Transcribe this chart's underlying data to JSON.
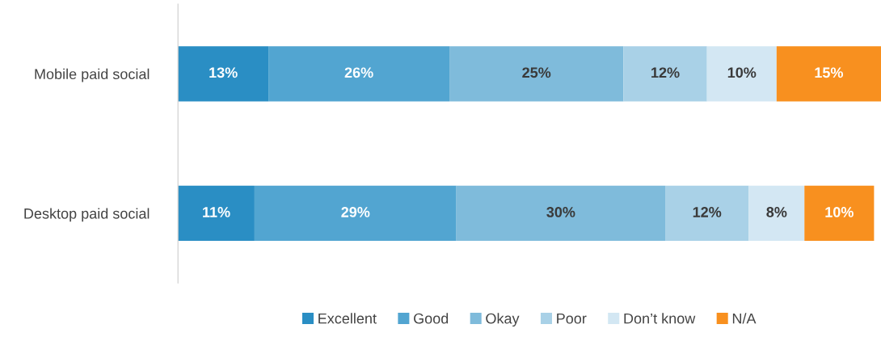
{
  "chart_data": {
    "type": "bar",
    "orientation": "horizontal",
    "stacked": true,
    "categories": [
      "Mobile paid social",
      "Desktop paid social"
    ],
    "series": [
      {
        "name": "Excellent",
        "color": "#2a8ec4",
        "values": [
          13,
          11
        ],
        "value_labels": [
          "13%",
          "11%"
        ]
      },
      {
        "name": "Good",
        "color": "#52a5d1",
        "values": [
          26,
          29
        ],
        "value_labels": [
          "26%",
          "29%"
        ]
      },
      {
        "name": "Okay",
        "color": "#7fbbdb",
        "values": [
          25,
          30
        ],
        "value_labels": [
          "25%",
          "30%"
        ]
      },
      {
        "name": "Poor",
        "color": "#a9d1e7",
        "values": [
          12,
          12
        ],
        "value_labels": [
          "12%",
          "12%"
        ]
      },
      {
        "name": "Don’t know",
        "color": "#d3e7f3",
        "values": [
          10,
          8
        ],
        "value_labels": [
          "10%",
          "8%"
        ]
      },
      {
        "name": "N/A",
        "color": "#f8901f",
        "values": [
          15,
          10
        ],
        "value_labels": [
          "15%",
          "10%"
        ]
      }
    ],
    "legend": "bottom",
    "grid": false,
    "tick_labels": "y"
  }
}
